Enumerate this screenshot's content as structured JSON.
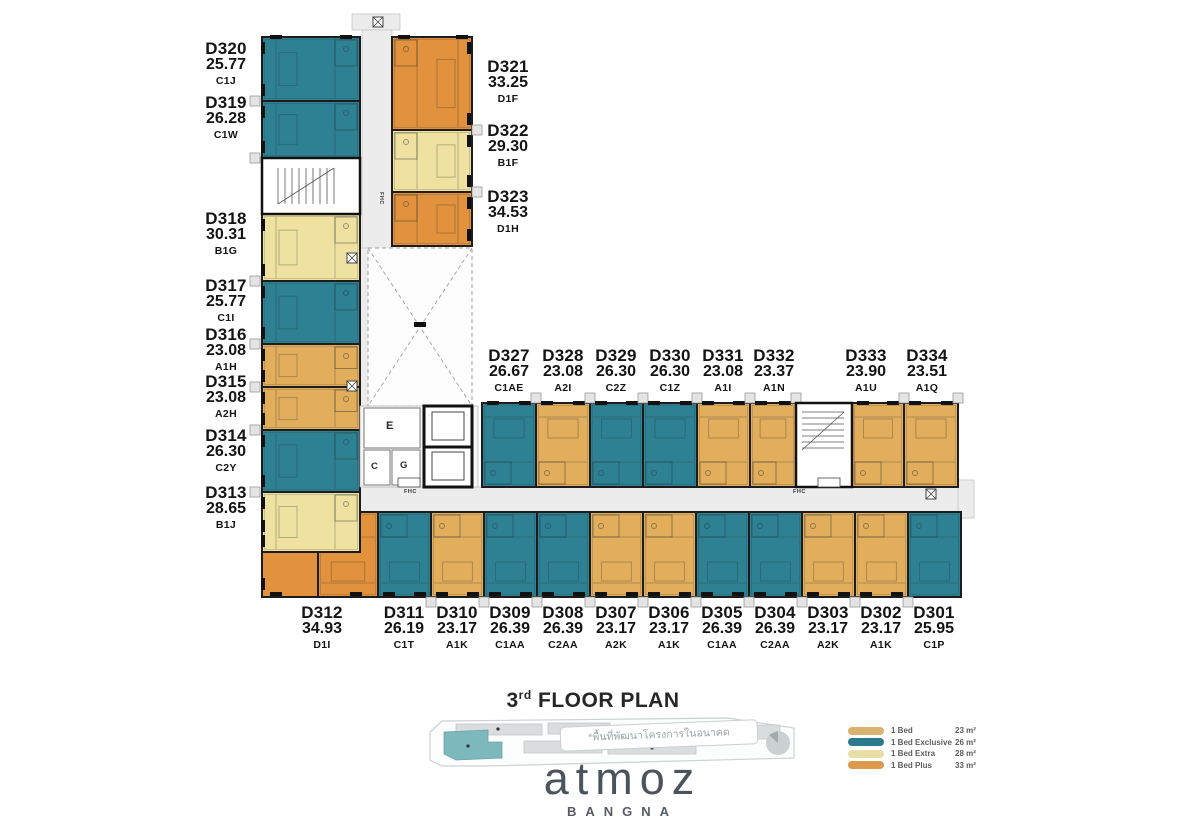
{
  "title": {
    "number": "3",
    "suffix": "rd",
    "text": "FLOOR PLAN"
  },
  "brand": {
    "logo": "atmoz",
    "sub": "BANGNA"
  },
  "keyplan": {
    "note": "*พื้นที่พัฒนาโครงการในอนาคต"
  },
  "core": {
    "elevator_hall": "E",
    "service_c": "C",
    "service_g": "G",
    "fhc": "FHC"
  },
  "colors": {
    "one_bed": {
      "fill": "#E3AE5B",
      "legend": "#D9B26F",
      "line": "#7c5a20"
    },
    "exclusive": {
      "fill": "#2E8193",
      "legend": "#2B7A8C",
      "line": "#0f4754"
    },
    "extra": {
      "fill": "#EFE2A0",
      "legend": "#E8DFA6",
      "line": "#8f823f"
    },
    "plus": {
      "fill": "#E2923C",
      "legend": "#DC9A4F",
      "line": "#82511c"
    },
    "wall": "#1c1c1c",
    "corridor": "#ececec",
    "keyplan_highlight": "#7DB8BD",
    "logo_text": "#4B535C"
  },
  "legend": {
    "items": [
      {
        "label": "1 Bed",
        "area": "23 m²",
        "cat": "one_bed"
      },
      {
        "label": "1 Bed Exclusive",
        "area": "26 m²",
        "cat": "exclusive"
      },
      {
        "label": "1 Bed Extra",
        "area": "28 m²",
        "cat": "extra"
      },
      {
        "label": "1 Bed Plus",
        "area": "33 m²",
        "cat": "plus"
      }
    ]
  },
  "units": [
    {
      "id": "D301",
      "area": "25.95",
      "type": "C1P",
      "cat": "exclusive"
    },
    {
      "id": "D302",
      "area": "23.17",
      "type": "A1K",
      "cat": "one_bed"
    },
    {
      "id": "D303",
      "area": "23.17",
      "type": "A2K",
      "cat": "one_bed"
    },
    {
      "id": "D304",
      "area": "26.39",
      "type": "C2AA",
      "cat": "exclusive"
    },
    {
      "id": "D305",
      "area": "26.39",
      "type": "C1AA",
      "cat": "exclusive"
    },
    {
      "id": "D306",
      "area": "23.17",
      "type": "A1K",
      "cat": "one_bed"
    },
    {
      "id": "D307",
      "area": "23.17",
      "type": "A2K",
      "cat": "one_bed"
    },
    {
      "id": "D308",
      "area": "26.39",
      "type": "C2AA",
      "cat": "exclusive"
    },
    {
      "id": "D309",
      "area": "26.39",
      "type": "C1AA",
      "cat": "exclusive"
    },
    {
      "id": "D310",
      "area": "23.17",
      "type": "A1K",
      "cat": "one_bed"
    },
    {
      "id": "D311",
      "area": "26.19",
      "type": "C1T",
      "cat": "exclusive"
    },
    {
      "id": "D312",
      "area": "34.93",
      "type": "D1I",
      "cat": "plus"
    },
    {
      "id": "D313",
      "area": "28.65",
      "type": "B1J",
      "cat": "extra"
    },
    {
      "id": "D314",
      "area": "26.30",
      "type": "C2Y",
      "cat": "exclusive"
    },
    {
      "id": "D315",
      "area": "23.08",
      "type": "A2H",
      "cat": "one_bed"
    },
    {
      "id": "D316",
      "area": "23.08",
      "type": "A1H",
      "cat": "one_bed"
    },
    {
      "id": "D317",
      "area": "25.77",
      "type": "C1I",
      "cat": "exclusive"
    },
    {
      "id": "D318",
      "area": "30.31",
      "type": "B1G",
      "cat": "extra"
    },
    {
      "id": "D319",
      "area": "26.28",
      "type": "C1W",
      "cat": "exclusive"
    },
    {
      "id": "D320",
      "area": "25.77",
      "type": "C1J",
      "cat": "exclusive"
    },
    {
      "id": "D321",
      "area": "33.25",
      "type": "D1F",
      "cat": "plus"
    },
    {
      "id": "D322",
      "area": "29.30",
      "type": "B1F",
      "cat": "extra"
    },
    {
      "id": "D323",
      "area": "34.53",
      "type": "D1H",
      "cat": "plus"
    },
    {
      "id": "D327",
      "area": "26.67",
      "type": "C1AE",
      "cat": "exclusive"
    },
    {
      "id": "D328",
      "area": "23.08",
      "type": "A2I",
      "cat": "one_bed"
    },
    {
      "id": "D329",
      "area": "26.30",
      "type": "C2Z",
      "cat": "exclusive"
    },
    {
      "id": "D330",
      "area": "26.30",
      "type": "C1Z",
      "cat": "exclusive"
    },
    {
      "id": "D331",
      "area": "23.08",
      "type": "A1I",
      "cat": "one_bed"
    },
    {
      "id": "D332",
      "area": "23.37",
      "type": "A1N",
      "cat": "one_bed"
    },
    {
      "id": "D333",
      "area": "23.90",
      "type": "A1U",
      "cat": "one_bed"
    },
    {
      "id": "D334",
      "area": "23.51",
      "type": "A1Q",
      "cat": "one_bed"
    }
  ]
}
